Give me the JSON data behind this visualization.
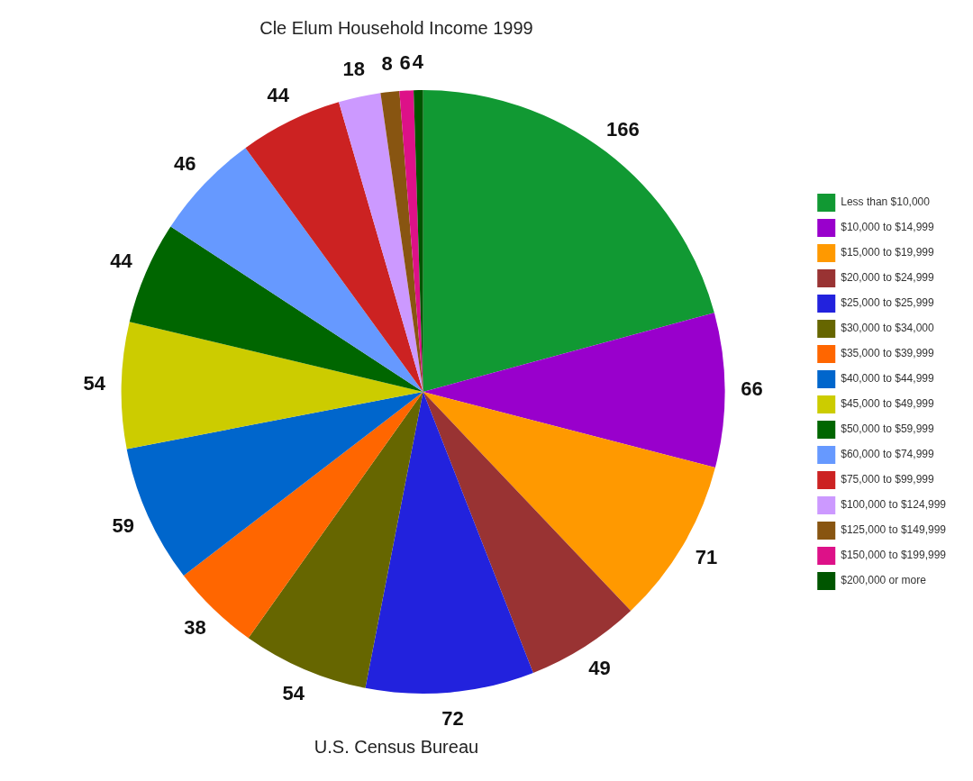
{
  "chart_data": {
    "type": "pie",
    "title": "Cle Elum Household Income 1999",
    "categories": [
      "Less than $10,000",
      "$10,000 to $14,999",
      "$15,000 to $19,999",
      "$20,000 to $24,999",
      "$25,000 to $25,999",
      "$30,000 to $34,000",
      "$35,000 to $39,999",
      "$40,000 to $44,999",
      "$45,000 to $49,999",
      "$50,000 to $59,999",
      "$60,000 to $74,999",
      "$75,000 to $99,999",
      "$100,000 to $124,999",
      "$125,000 to $149,999",
      "$150,000 to $199,999",
      "$200,000 or more"
    ],
    "values": [
      166,
      66,
      71,
      49,
      72,
      54,
      38,
      59,
      54,
      44,
      46,
      44,
      18,
      8,
      6,
      4
    ],
    "colors": [
      "#119933",
      "#9900cc",
      "#ff9900",
      "#993333",
      "#2222dd",
      "#666600",
      "#ff6600",
      "#0066cc",
      "#cccc00",
      "#006600",
      "#6699ff",
      "#cc2222",
      "#cc99ff",
      "#885511",
      "#dd1188",
      "#005500"
    ],
    "data_labels": true,
    "legend": "right",
    "annotations": [
      "U.S. Census Bureau"
    ]
  }
}
